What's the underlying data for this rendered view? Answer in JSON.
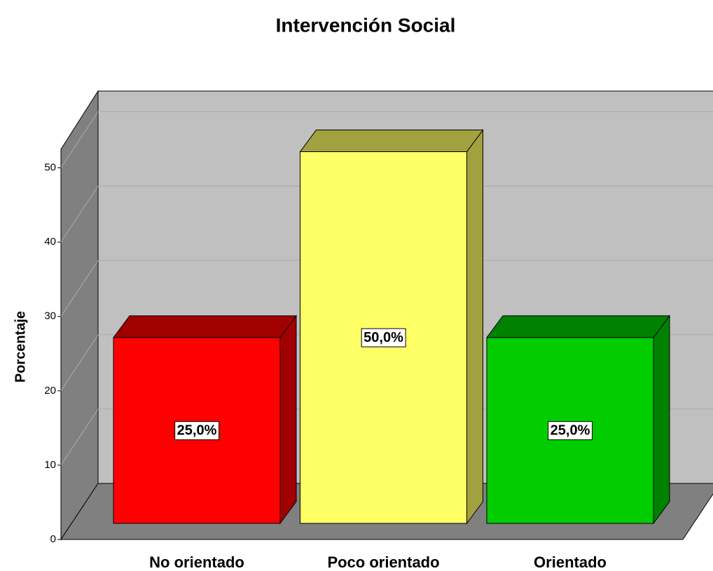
{
  "chart_data": {
    "type": "bar",
    "title": "Intervención Social",
    "ylabel": "Porcentaje",
    "categories": [
      "No orientado",
      "Poco orientado",
      "Orientado"
    ],
    "values": [
      25,
      50,
      25
    ],
    "value_labels": [
      "25,0%",
      "50,0%",
      "25,0%"
    ],
    "colors": [
      "#ff0000",
      "#ffff66",
      "#00cc00"
    ],
    "ylim": [
      0,
      52.5
    ],
    "yticks": [
      0,
      10,
      20,
      30,
      40,
      50
    ],
    "grid": true
  }
}
